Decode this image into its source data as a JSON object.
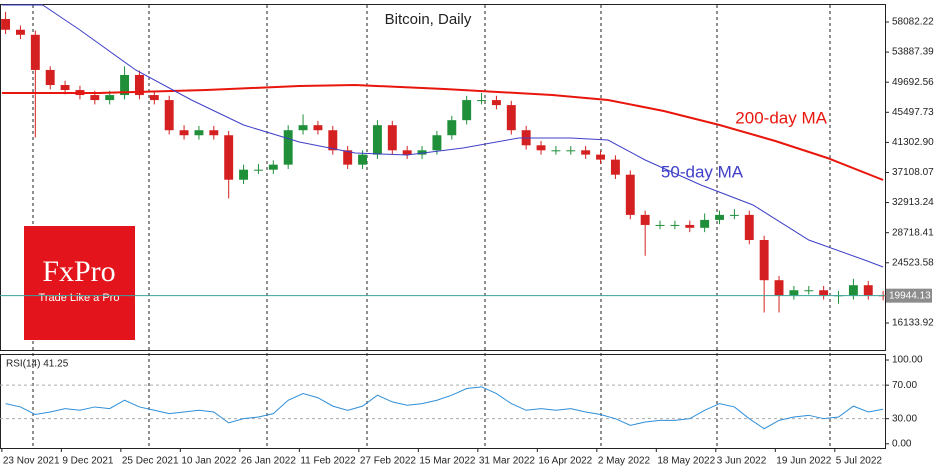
{
  "chart_data": [
    {
      "type": "candlestick",
      "title": "Bitcoin, Daily",
      "x": [
        1,
        5,
        9,
        13,
        17,
        21,
        25,
        29,
        33,
        37,
        41,
        45,
        49,
        53,
        57,
        61,
        65,
        69,
        73,
        77,
        81,
        85,
        89,
        93,
        97,
        101,
        105,
        109,
        113,
        117,
        121,
        125,
        129,
        133,
        137,
        141,
        145,
        149,
        153,
        157,
        161,
        165,
        169,
        173,
        177,
        181,
        185,
        189,
        193,
        197,
        201,
        205,
        209,
        213,
        217,
        221,
        225,
        229,
        233,
        237
      ],
      "open": [
        58500,
        57000,
        56300,
        51400,
        49300,
        48600,
        47900,
        47200,
        47900,
        50700,
        47900,
        47200,
        43000,
        42300,
        43000,
        42300,
        36100,
        37500,
        37500,
        38200,
        43000,
        43700,
        43000,
        40200,
        38200,
        39600,
        43700,
        40200,
        39600,
        40200,
        42300,
        44400,
        47200,
        47200,
        46500,
        43000,
        40900,
        40200,
        40200,
        40200,
        39600,
        38900,
        36800,
        31200,
        29800,
        29800,
        29800,
        29400,
        30500,
        31200,
        31200,
        27700,
        22100,
        20000,
        20700,
        20700,
        20000,
        20000,
        21400,
        20000
      ],
      "high": [
        59500,
        57600,
        56900,
        51900,
        49900,
        49200,
        48500,
        48500,
        51900,
        51300,
        48500,
        47800,
        43700,
        43600,
        43600,
        42900,
        38200,
        38300,
        38800,
        43700,
        45200,
        44300,
        43600,
        40800,
        40200,
        44400,
        44300,
        40800,
        40800,
        42900,
        45000,
        47800,
        48200,
        47800,
        47100,
        43600,
        41500,
        40800,
        40800,
        40800,
        40200,
        39500,
        37400,
        31800,
        30400,
        30400,
        30400,
        31400,
        31800,
        32000,
        31800,
        28300,
        22700,
        21300,
        21300,
        21300,
        20600,
        22300,
        22000,
        20600
      ],
      "low": [
        56400,
        55700,
        42000,
        48700,
        48000,
        47300,
        46600,
        46600,
        47300,
        47300,
        46600,
        42400,
        41700,
        41700,
        41700,
        33500,
        35500,
        36900,
        36900,
        37600,
        42400,
        42400,
        39600,
        37600,
        37600,
        39000,
        39600,
        39000,
        39000,
        39600,
        41700,
        43800,
        46600,
        45900,
        42400,
        40300,
        39600,
        39600,
        39600,
        39000,
        38300,
        36200,
        30600,
        25500,
        29200,
        29200,
        28800,
        28800,
        29900,
        30600,
        27100,
        17600,
        17600,
        19400,
        20100,
        19400,
        18800,
        19400,
        19400,
        19300
      ],
      "close": [
        57000,
        56300,
        51400,
        49300,
        48600,
        47900,
        47200,
        47900,
        50700,
        47900,
        47200,
        43000,
        42300,
        43000,
        42300,
        36100,
        37500,
        37500,
        38200,
        43000,
        43700,
        43000,
        40200,
        38200,
        39600,
        43700,
        40200,
        39600,
        40200,
        42300,
        44400,
        47200,
        47200,
        46500,
        43000,
        40900,
        40200,
        40200,
        40200,
        39600,
        38900,
        36800,
        31200,
        29800,
        29800,
        29800,
        29400,
        30500,
        31200,
        31200,
        27700,
        22100,
        20000,
        20700,
        20700,
        20000,
        20000,
        21400,
        20000,
        19944.13
      ],
      "up_color": "#1f8f3a",
      "down_color": "#d42020",
      "series": [
        {
          "name": "200-day MA",
          "color": "#e8160c",
          "x": [
            0,
            26,
            55,
            80,
            95,
            119,
            148,
            163,
            178,
            193,
            208,
            222,
            237
          ],
          "values": [
            48188,
            48188,
            48606,
            49163,
            49302,
            48745,
            47909,
            47212,
            45679,
            43728,
            41498,
            39129,
            36063
          ]
        },
        {
          "name": "50-day MA",
          "color": "#3f3fc8",
          "x": [
            0,
            11,
            21,
            36,
            51,
            65,
            80,
            95,
            109,
            124,
            139,
            153,
            163,
            173,
            188,
            202,
            217,
            232,
            237
          ],
          "values": [
            60450,
            60450,
            56967,
            51393,
            47212,
            43728,
            41359,
            39826,
            39547,
            40526,
            41916,
            41916,
            41637,
            38851,
            35366,
            32579,
            27701,
            24914,
            23938
          ]
        }
      ],
      "last_price": 19944.13,
      "last_price_color": "#3aa39a",
      "xlim": [
        -0.5,
        237.5
      ],
      "ylim": [
        12371,
        60590
      ],
      "yticks": [
        16133.92,
        24523.58,
        28718.41,
        32913.24,
        37108.07,
        {
          "value": 41302.9,
          "label": "41302.90"
        },
        45497.73,
        49692.56,
        53887.39,
        58082.22
      ],
      "xticks": [
        {
          "value": 0,
          "label": "23 Nov 2021"
        },
        {
          "value": 16,
          "label": "9 Dec 2021"
        },
        {
          "value": 32,
          "label": "25 Dec 2021"
        },
        {
          "value": 48,
          "label": "10 Jan 2022"
        },
        {
          "value": 64,
          "label": "26 Jan 2022"
        },
        {
          "value": 80,
          "label": "11 Feb 2022"
        },
        {
          "value": 96,
          "label": "27 Feb 2022"
        },
        {
          "value": 112,
          "label": "15 Mar 2022"
        },
        {
          "value": 128,
          "label": "31 Mar 2022"
        },
        {
          "value": 144,
          "label": "16 Apr 2022"
        },
        {
          "value": 160,
          "label": "2 May 2022"
        },
        {
          "value": 176,
          "label": "18 May 2022"
        },
        {
          "value": 192,
          "label": "3 Jun 2022"
        },
        {
          "value": 208,
          "label": "19 Jun 2022"
        },
        {
          "value": 224,
          "label": "5 Jul 2022"
        }
      ]
    },
    {
      "type": "line",
      "title": "RSI(14) 41.25",
      "x": [
        1,
        5,
        9,
        13,
        17,
        21,
        25,
        29,
        33,
        37,
        41,
        45,
        49,
        53,
        57,
        61,
        65,
        69,
        73,
        77,
        81,
        85,
        89,
        93,
        97,
        101,
        105,
        109,
        113,
        117,
        121,
        125,
        129,
        133,
        137,
        141,
        145,
        149,
        153,
        157,
        161,
        165,
        169,
        173,
        177,
        181,
        185,
        189,
        193,
        197,
        201,
        205,
        209,
        213,
        217,
        221,
        225,
        229,
        233,
        237
      ],
      "values": [
        48,
        44,
        35,
        38,
        42,
        40,
        44,
        42,
        52,
        44,
        40,
        36,
        38,
        40,
        38,
        25,
        30,
        32,
        36,
        52,
        60,
        55,
        45,
        40,
        45,
        58,
        50,
        46,
        48,
        52,
        58,
        66,
        68,
        60,
        48,
        40,
        42,
        40,
        42,
        38,
        35,
        30,
        22,
        26,
        28,
        28,
        30,
        40,
        48,
        44,
        30,
        18,
        28,
        32,
        34,
        30,
        32,
        45,
        38,
        41.25
      ],
      "color": "#2f8fd8",
      "xlim": [
        -0.5,
        237.5
      ],
      "ylim": [
        -5,
        106
      ],
      "yticks": [
        {
          "value": 0,
          "label": "0.00"
        },
        {
          "value": 30,
          "label": "30.00"
        },
        {
          "value": 70,
          "label": "70.00"
        },
        {
          "value": 100,
          "label": "100.00"
        }
      ],
      "levels": [
        30,
        70
      ]
    }
  ],
  "logo": {
    "brand": "FxPro",
    "tagline": "Trade Like a Pro"
  }
}
